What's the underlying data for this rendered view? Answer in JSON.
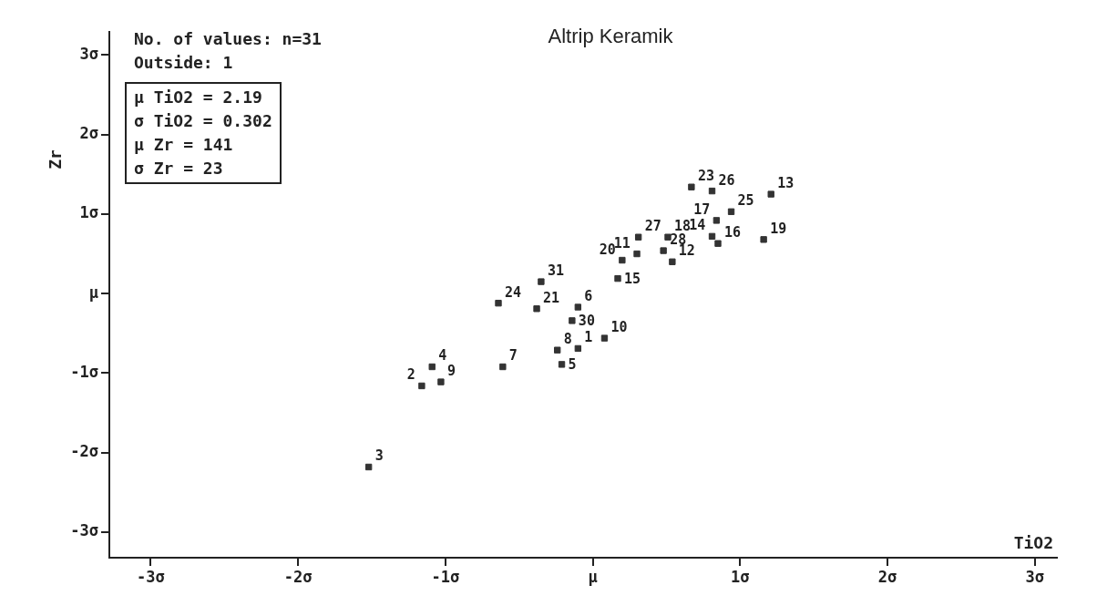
{
  "chart_data": {
    "type": "scatter",
    "title": "Altrip Keramik",
    "xlabel": "TiO2",
    "ylabel": "Zr",
    "xlim": [
      -3.28,
      3.15
    ],
    "ylim": [
      -3.32,
      3.29
    ],
    "xticks": [
      {
        "value": -3,
        "label": "-3σ"
      },
      {
        "value": -2,
        "label": "-2σ"
      },
      {
        "value": -1,
        "label": "-1σ"
      },
      {
        "value": 0,
        "label": "μ"
      },
      {
        "value": 1,
        "label": "1σ"
      },
      {
        "value": 2,
        "label": "2σ"
      },
      {
        "value": 3,
        "label": "3σ"
      }
    ],
    "yticks": [
      {
        "value": -3,
        "label": "-3σ"
      },
      {
        "value": -2,
        "label": "-2σ"
      },
      {
        "value": -1,
        "label": "-1σ"
      },
      {
        "value": 0,
        "label": "μ"
      },
      {
        "value": 1,
        "label": "1σ"
      },
      {
        "value": 2,
        "label": "2σ"
      },
      {
        "value": 3,
        "label": "3σ"
      }
    ],
    "marker": "square",
    "legend": false,
    "series": [
      {
        "color": "#333333",
        "x": [
          -0.1,
          -1.16,
          -1.52,
          -1.09,
          -0.21,
          -0.1,
          -0.61,
          -0.24,
          -1.03,
          0.08,
          0.3,
          0.54,
          1.21,
          0.81,
          0.17,
          0.85,
          0.84,
          0.51,
          1.16,
          0.2,
          -0.38,
          0.67,
          -0.64,
          0.94,
          0.81,
          0.31,
          0.48,
          -0.14,
          -0.35
        ],
        "values": [
          -0.69,
          -1.16,
          -2.18,
          -0.92,
          -0.89,
          -0.17,
          -0.92,
          -0.71,
          -1.11,
          -0.56,
          0.5,
          0.4,
          1.25,
          0.72,
          0.19,
          0.63,
          0.92,
          0.71,
          0.68,
          0.42,
          -0.19,
          1.34,
          -0.12,
          1.03,
          1.29,
          0.71,
          0.54,
          -0.34,
          0.15
        ]
      }
    ],
    "annotations": [
      "No. of values: n=31",
      "Outside: 1",
      "μ TiO2 = 2.19\nσ TiO2 = 0.302\nμ Zr = 141\nσ Zr = 23",
      {
        "text": "1",
        "x": -0.1,
        "y": -0.69
      },
      {
        "text": "2",
        "x": -1.16,
        "y": -1.16
      },
      {
        "text": "3",
        "x": -1.52,
        "y": -2.18
      },
      {
        "text": "4",
        "x": -1.09,
        "y": -0.92
      },
      {
        "text": "5",
        "x": -0.21,
        "y": -0.89
      },
      {
        "text": "6",
        "x": -0.1,
        "y": -0.17
      },
      {
        "text": "7",
        "x": -0.61,
        "y": -0.92
      },
      {
        "text": "8",
        "x": -0.24,
        "y": -0.71
      },
      {
        "text": "9",
        "x": -1.03,
        "y": -1.11
      },
      {
        "text": "10",
        "x": 0.08,
        "y": -0.56
      },
      {
        "text": "11",
        "x": 0.3,
        "y": 0.5
      },
      {
        "text": "12",
        "x": 0.54,
        "y": 0.4
      },
      {
        "text": "13",
        "x": 1.21,
        "y": 1.25
      },
      {
        "text": "14",
        "x": 0.81,
        "y": 0.72
      },
      {
        "text": "15",
        "x": 0.17,
        "y": 0.19
      },
      {
        "text": "16",
        "x": 0.85,
        "y": 0.63
      },
      {
        "text": "17",
        "x": 0.84,
        "y": 0.92
      },
      {
        "text": "18",
        "x": 0.51,
        "y": 0.71
      },
      {
        "text": "19",
        "x": 1.16,
        "y": 0.68
      },
      {
        "text": "20",
        "x": 0.2,
        "y": 0.42
      },
      {
        "text": "21",
        "x": -0.38,
        "y": -0.19
      },
      {
        "text": "23",
        "x": 0.67,
        "y": 1.34
      },
      {
        "text": "24",
        "x": -0.64,
        "y": -0.12
      },
      {
        "text": "25",
        "x": 0.94,
        "y": 1.03
      },
      {
        "text": "26",
        "x": 0.81,
        "y": 1.29
      },
      {
        "text": "27",
        "x": 0.31,
        "y": 0.71
      },
      {
        "text": "28",
        "x": 0.48,
        "y": 0.54
      },
      {
        "text": "30",
        "x": -0.14,
        "y": -0.34
      },
      {
        "text": "31",
        "x": -0.35,
        "y": 0.15
      }
    ]
  }
}
